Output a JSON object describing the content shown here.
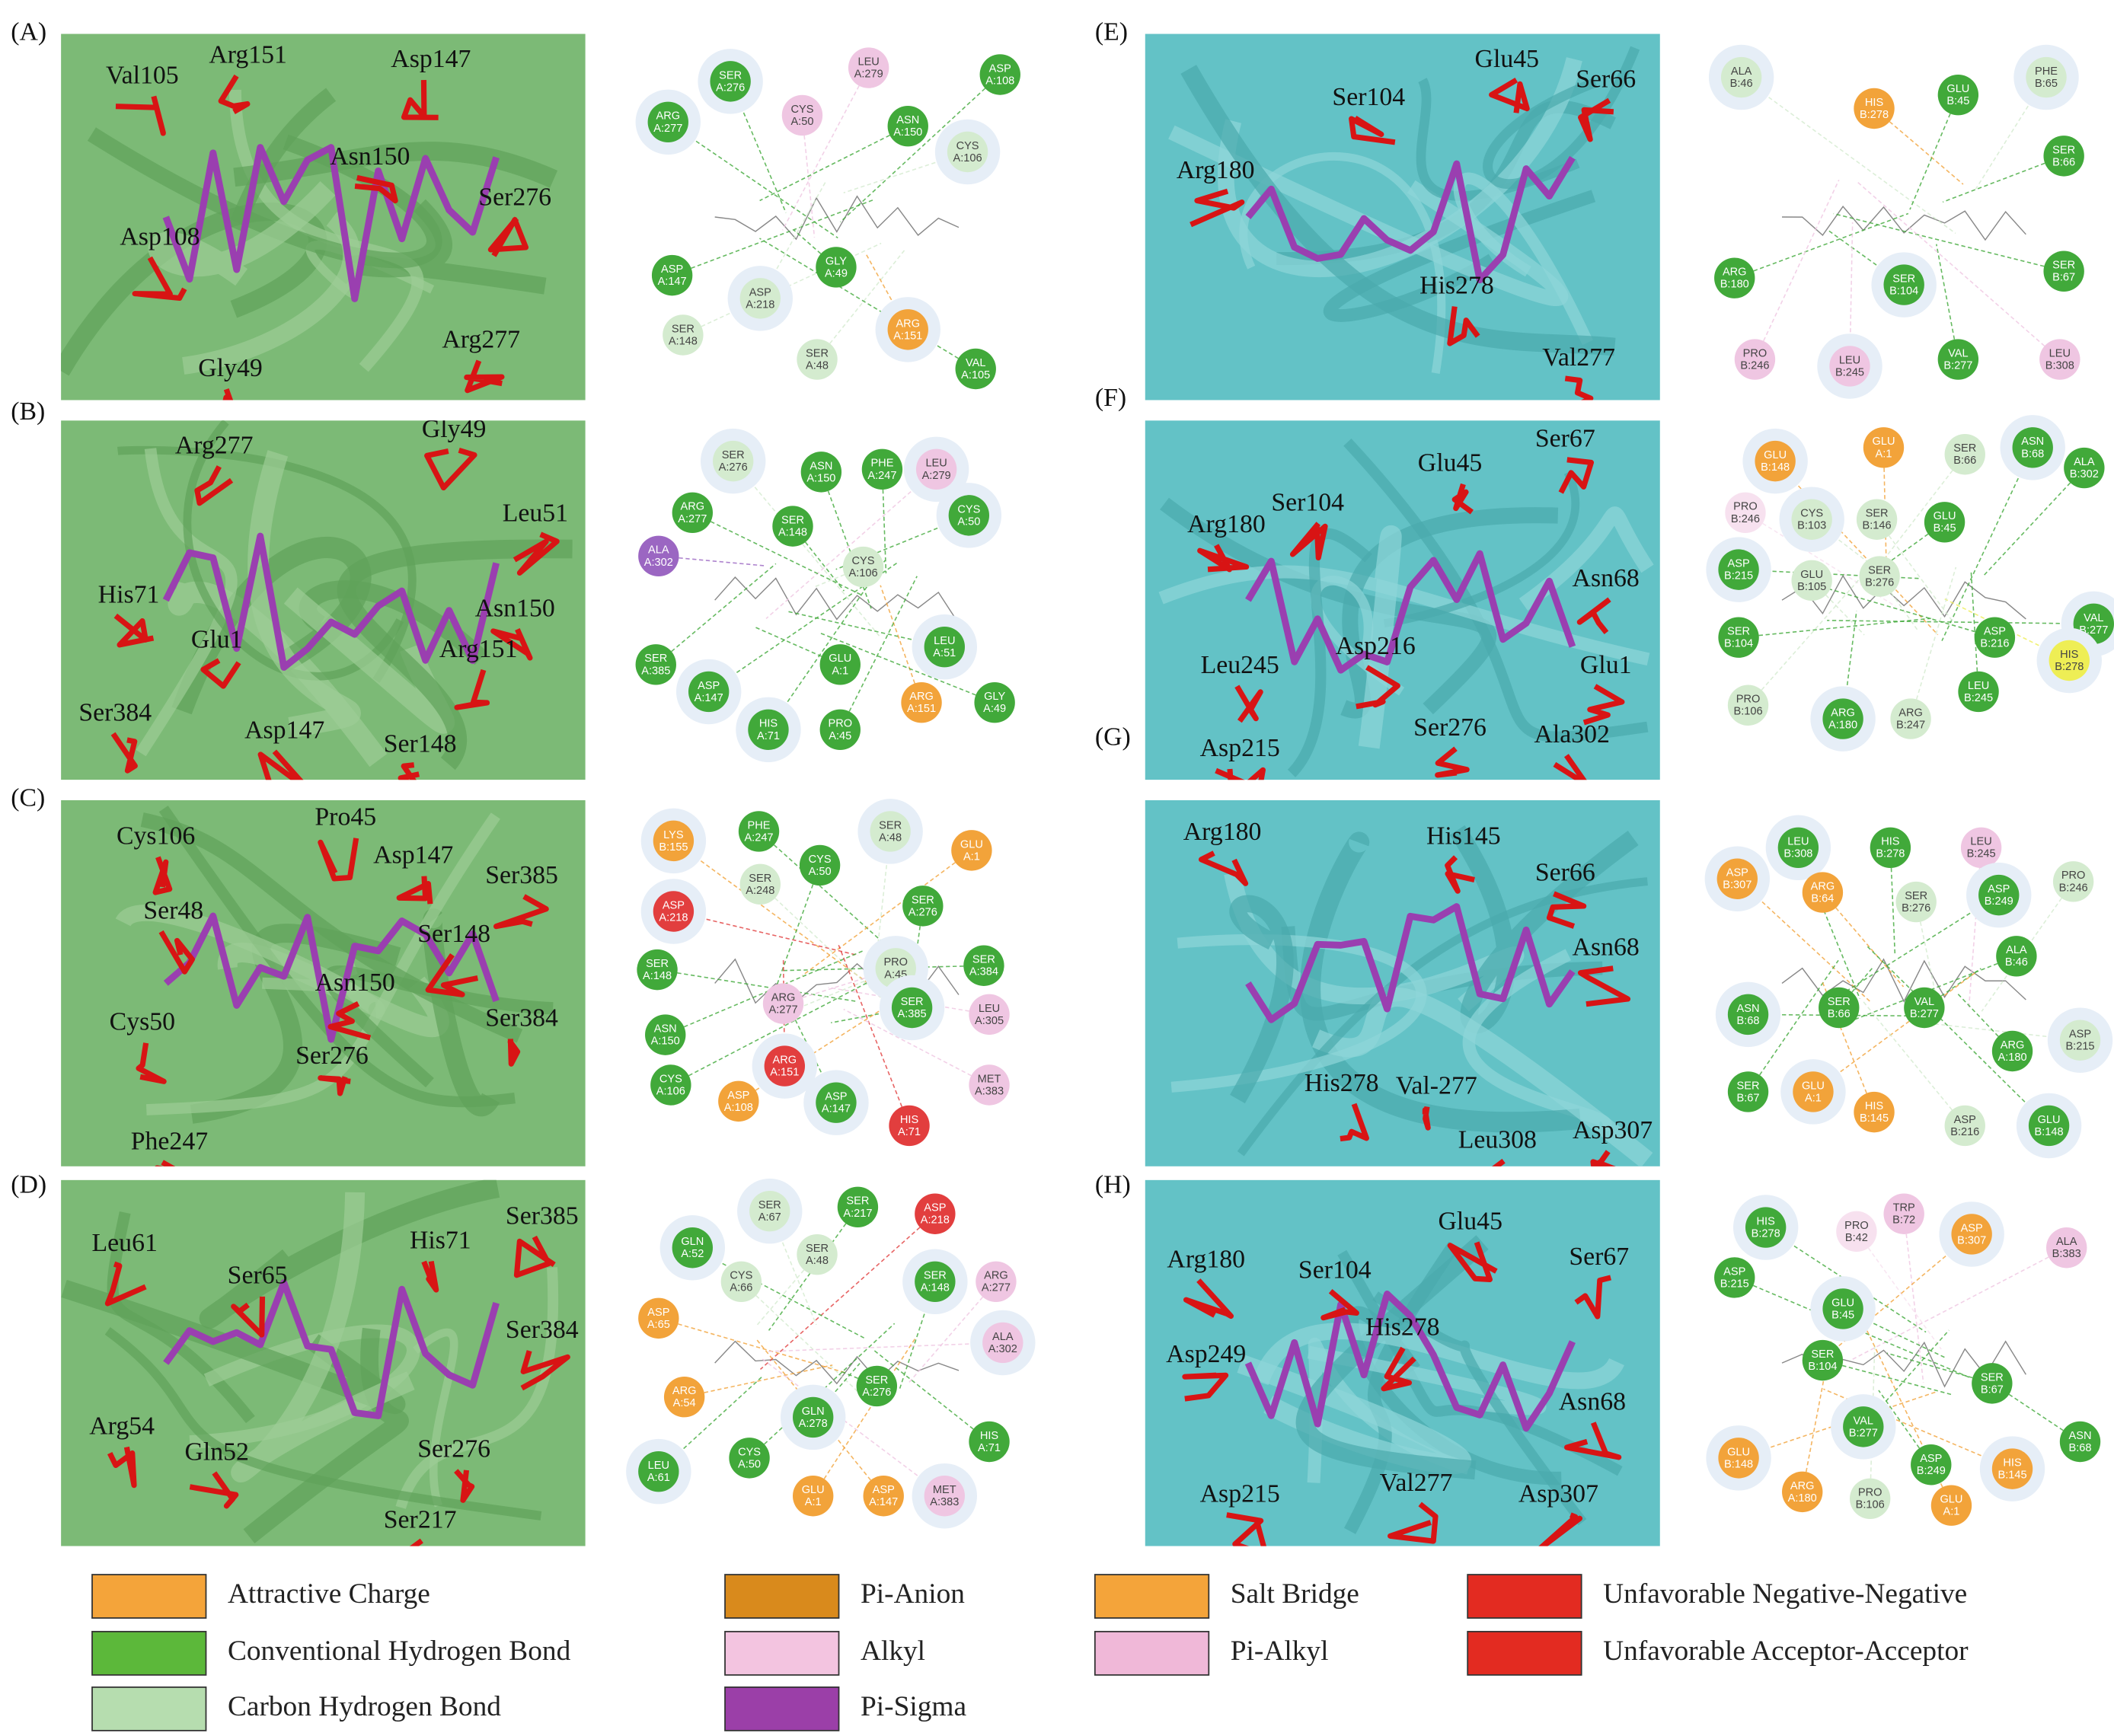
{
  "panels": [
    {
      "label": "(A)",
      "residues": [
        "Val105",
        "Arg151",
        "Asp147",
        "Asn150",
        "Ser276",
        "Asp108",
        "Arg277",
        "Gly49"
      ],
      "nodes": [
        {
          "res": "SER",
          "id": "A:276",
          "color": "#41a93a"
        },
        {
          "res": "LEU",
          "id": "A:279",
          "color": "#efc6e2"
        },
        {
          "res": "ASP",
          "id": "A:108",
          "color": "#41a93a"
        },
        {
          "res": "ARG",
          "id": "A:277",
          "color": "#41a93a"
        },
        {
          "res": "CYS",
          "id": "A:50",
          "color": "#efc6e2"
        },
        {
          "res": "ASN",
          "id": "A:150",
          "color": "#41a93a"
        },
        {
          "res": "CYS",
          "id": "A:106",
          "color": "#d4ebcf"
        },
        {
          "res": "ASP",
          "id": "A:147",
          "color": "#41a93a"
        },
        {
          "res": "GLY",
          "id": "A:49",
          "color": "#41a93a"
        },
        {
          "res": "ASP",
          "id": "A:218",
          "color": "#d4ebcf"
        },
        {
          "res": "SER",
          "id": "A:148",
          "color": "#d4ebcf"
        },
        {
          "res": "SER",
          "id": "A:48",
          "color": "#d4ebcf"
        },
        {
          "res": "ARG",
          "id": "A:151",
          "color": "#f2a33a"
        },
        {
          "res": "VAL",
          "id": "A:105",
          "color": "#41a93a"
        }
      ]
    },
    {
      "label": "(B)",
      "residues": [
        "Arg277",
        "Gly49",
        "Leu51",
        "His71",
        "Asn150",
        "Glu1",
        "Arg151",
        "Ser384",
        "Asp147",
        "Ser148"
      ],
      "nodes": [
        {
          "res": "SER",
          "id": "A:276",
          "color": "#d4ebcf"
        },
        {
          "res": "ASN",
          "id": "A:150",
          "color": "#41a93a"
        },
        {
          "res": "PHE",
          "id": "A:247",
          "color": "#41a93a"
        },
        {
          "res": "LEU",
          "id": "A:279",
          "color": "#efc6e2"
        },
        {
          "res": "ARG",
          "id": "A:277",
          "color": "#41a93a"
        },
        {
          "res": "SER",
          "id": "A:148",
          "color": "#41a93a"
        },
        {
          "res": "CYS",
          "id": "A:50",
          "color": "#41a93a"
        },
        {
          "res": "ALA",
          "id": "A:302",
          "color": "#9b66c2"
        },
        {
          "res": "CYS",
          "id": "A:106",
          "color": "#d4ebcf"
        },
        {
          "res": "LEU",
          "id": "A:51",
          "color": "#41a93a"
        },
        {
          "res": "SER",
          "id": "A:385",
          "color": "#41a93a"
        },
        {
          "res": "GLU",
          "id": "A:1",
          "color": "#41a93a"
        },
        {
          "res": "ASP",
          "id": "A:147",
          "color": "#41a93a"
        },
        {
          "res": "ARG",
          "id": "A:151",
          "color": "#f2a33a"
        },
        {
          "res": "GLY",
          "id": "A:49",
          "color": "#41a93a"
        },
        {
          "res": "HIS",
          "id": "A:71",
          "color": "#41a93a"
        },
        {
          "res": "PRO",
          "id": "A:45",
          "color": "#41a93a"
        }
      ]
    },
    {
      "label": "(C)",
      "residues": [
        "Cys106",
        "Pro45",
        "Asp147",
        "Ser385",
        "Ser48",
        "Ser148",
        "Asn150",
        "Ser384",
        "Cys50",
        "Ser276",
        "Phe247"
      ],
      "nodes": [
        {
          "res": "LYS",
          "id": "B:155",
          "color": "#f2a33a"
        },
        {
          "res": "PHE",
          "id": "A:247",
          "color": "#41a93a"
        },
        {
          "res": "CYS",
          "id": "A:50",
          "color": "#41a93a"
        },
        {
          "res": "SER",
          "id": "A:48",
          "color": "#d4ebcf"
        },
        {
          "res": "GLU",
          "id": "A:1",
          "color": "#f2a33a"
        },
        {
          "res": "SER",
          "id": "A:248",
          "color": "#d4ebcf"
        },
        {
          "res": "ASP",
          "id": "A:218",
          "color": "#e23e3e"
        },
        {
          "res": "SER",
          "id": "A:276",
          "color": "#41a93a"
        },
        {
          "res": "SER",
          "id": "A:148",
          "color": "#41a93a"
        },
        {
          "res": "PRO",
          "id": "A:45",
          "color": "#d4ebcf"
        },
        {
          "res": "SER",
          "id": "A:384",
          "color": "#41a93a"
        },
        {
          "res": "ARG",
          "id": "A:277",
          "color": "#efc6e2"
        },
        {
          "res": "SER",
          "id": "A:385",
          "color": "#41a93a"
        },
        {
          "res": "LEU",
          "id": "A:305",
          "color": "#efc6e2"
        },
        {
          "res": "ASN",
          "id": "A:150",
          "color": "#41a93a"
        },
        {
          "res": "ARG",
          "id": "A:151",
          "color": "#e23e3e"
        },
        {
          "res": "CYS",
          "id": "A:106",
          "color": "#41a93a"
        },
        {
          "res": "ASP",
          "id": "A:108",
          "color": "#f2a33a"
        },
        {
          "res": "ASP",
          "id": "A:147",
          "color": "#41a93a"
        },
        {
          "res": "HIS",
          "id": "A:71",
          "color": "#e23e3e"
        },
        {
          "res": "MET",
          "id": "A:383",
          "color": "#efc6e2"
        }
      ]
    },
    {
      "label": "(D)",
      "residues": [
        "Leu61",
        "His71",
        "Ser385",
        "Ser65",
        "Ser384",
        "Arg54",
        "Gln52",
        "Ser276",
        "Ser217"
      ],
      "nodes": [
        {
          "res": "SER",
          "id": "A:67",
          "color": "#d4ebcf"
        },
        {
          "res": "SER",
          "id": "A:217",
          "color": "#41a93a"
        },
        {
          "res": "ASP",
          "id": "A:218",
          "color": "#e23e3e"
        },
        {
          "res": "GLN",
          "id": "A:52",
          "color": "#41a93a"
        },
        {
          "res": "SER",
          "id": "A:48",
          "color": "#d4ebcf"
        },
        {
          "res": "CYS",
          "id": "A:66",
          "color": "#d4ebcf"
        },
        {
          "res": "SER",
          "id": "A:148",
          "color": "#41a93a"
        },
        {
          "res": "ARG",
          "id": "A:277",
          "color": "#efc6e2"
        },
        {
          "res": "ASP",
          "id": "A:65",
          "color": "#f2a33a"
        },
        {
          "res": "ALA",
          "id": "A:302",
          "color": "#efc6e2"
        },
        {
          "res": "ARG",
          "id": "A:54",
          "color": "#f2a33a"
        },
        {
          "res": "SER",
          "id": "A:276",
          "color": "#41a93a"
        },
        {
          "res": "GLN",
          "id": "A:278",
          "color": "#41a93a"
        },
        {
          "res": "HIS",
          "id": "A:71",
          "color": "#41a93a"
        },
        {
          "res": "CYS",
          "id": "A:50",
          "color": "#41a93a"
        },
        {
          "res": "LEU",
          "id": "A:61",
          "color": "#41a93a"
        },
        {
          "res": "GLU",
          "id": "A:1",
          "color": "#f2a33a"
        },
        {
          "res": "ASP",
          "id": "A:147",
          "color": "#f2a33a"
        },
        {
          "res": "MET",
          "id": "A:383",
          "color": "#efc6e2"
        }
      ]
    },
    {
      "label": "(E)",
      "residues": [
        "Glu45",
        "Ser104",
        "Ser66",
        "Arg180",
        "His278",
        "Val277"
      ],
      "nodes": [
        {
          "res": "ALA",
          "id": "B:46",
          "color": "#d4ebcf"
        },
        {
          "res": "HIS",
          "id": "B:278",
          "color": "#f2a33a"
        },
        {
          "res": "GLU",
          "id": "B:45",
          "color": "#41a93a"
        },
        {
          "res": "PHE",
          "id": "B:65",
          "color": "#d4ebcf"
        },
        {
          "res": "SER",
          "id": "B:66",
          "color": "#41a93a"
        },
        {
          "res": "ARG",
          "id": "B:180",
          "color": "#41a93a"
        },
        {
          "res": "SER",
          "id": "B:104",
          "color": "#41a93a"
        },
        {
          "res": "SER",
          "id": "B:67",
          "color": "#41a93a"
        },
        {
          "res": "PRO",
          "id": "B:246",
          "color": "#efc6e2"
        },
        {
          "res": "LEU",
          "id": "B:245",
          "color": "#efc6e2"
        },
        {
          "res": "VAL",
          "id": "B:277",
          "color": "#41a93a"
        },
        {
          "res": "LEU",
          "id": "B:308",
          "color": "#efc6e2"
        }
      ]
    },
    {
      "label": "(F)",
      "residues": [
        "Ser67",
        "Glu45",
        "Ser104",
        "Arg180",
        "Asn68",
        "Asp216",
        "Glu1",
        "Leu245",
        "Ser276",
        "Ala302",
        "Asp215"
      ],
      "nodes": [
        {
          "res": "GLU",
          "id": "B:148",
          "color": "#f2a33a"
        },
        {
          "res": "GLU",
          "id": "A:1",
          "color": "#f2a33a"
        },
        {
          "res": "SER",
          "id": "B:66",
          "color": "#d4ebcf"
        },
        {
          "res": "ASN",
          "id": "B:68",
          "color": "#41a93a"
        },
        {
          "res": "ALA",
          "id": "B:302",
          "color": "#41a93a"
        },
        {
          "res": "PRO",
          "id": "B:246",
          "color": "#f7e1ef"
        },
        {
          "res": "CYS",
          "id": "B:103",
          "color": "#d4ebcf"
        },
        {
          "res": "SER",
          "id": "B:146",
          "color": "#d4ebcf"
        },
        {
          "res": "GLU",
          "id": "B:45",
          "color": "#41a93a"
        },
        {
          "res": "ASP",
          "id": "B:215",
          "color": "#41a93a"
        },
        {
          "res": "GLU",
          "id": "B:105",
          "color": "#d4ebcf"
        },
        {
          "res": "SER",
          "id": "B:276",
          "color": "#d4ebcf"
        },
        {
          "res": "VAL",
          "id": "B:277",
          "color": "#41a93a"
        },
        {
          "res": "SER",
          "id": "B:104",
          "color": "#41a93a"
        },
        {
          "res": "ASP",
          "id": "B:216",
          "color": "#41a93a"
        },
        {
          "res": "HIS",
          "id": "B:278",
          "color": "#eeee55"
        },
        {
          "res": "LEU",
          "id": "B:245",
          "color": "#41a93a"
        },
        {
          "res": "PRO",
          "id": "B:106",
          "color": "#d4ebcf"
        },
        {
          "res": "ARG",
          "id": "A:180",
          "color": "#41a93a"
        },
        {
          "res": "ARG",
          "id": "B:247",
          "color": "#d4ebcf"
        }
      ]
    },
    {
      "label": "(G)",
      "residues": [
        "Arg180",
        "His145",
        "Ser66",
        "Asn68",
        "His278",
        "Val-277",
        "Leu308",
        "Asp307"
      ],
      "nodes": [
        {
          "res": "LEU",
          "id": "B:308",
          "color": "#41a93a"
        },
        {
          "res": "HIS",
          "id": "B:278",
          "color": "#41a93a"
        },
        {
          "res": "LEU",
          "id": "B:245",
          "color": "#efc6e2"
        },
        {
          "res": "ASP",
          "id": "B:307",
          "color": "#f2a33a"
        },
        {
          "res": "ARG",
          "id": "B:64",
          "color": "#f2a33a"
        },
        {
          "res": "SER",
          "id": "B:276",
          "color": "#d4ebcf"
        },
        {
          "res": "ASP",
          "id": "B:249",
          "color": "#41a93a"
        },
        {
          "res": "PRO",
          "id": "B:246",
          "color": "#d4ebcf"
        },
        {
          "res": "ALA",
          "id": "B:46",
          "color": "#41a93a"
        },
        {
          "res": "ASN",
          "id": "B:68",
          "color": "#41a93a"
        },
        {
          "res": "SER",
          "id": "B:66",
          "color": "#41a93a"
        },
        {
          "res": "VAL",
          "id": "B:277",
          "color": "#41a93a"
        },
        {
          "res": "ASP",
          "id": "B:215",
          "color": "#d4ebcf"
        },
        {
          "res": "ARG",
          "id": "A:180",
          "color": "#41a93a"
        },
        {
          "res": "SER",
          "id": "B:67",
          "color": "#41a93a"
        },
        {
          "res": "GLU",
          "id": "A:1",
          "color": "#f2a33a"
        },
        {
          "res": "HIS",
          "id": "B:145",
          "color": "#f2a33a"
        },
        {
          "res": "ASP",
          "id": "B:216",
          "color": "#d4ebcf"
        },
        {
          "res": "GLU",
          "id": "B:148",
          "color": "#41a93a"
        }
      ]
    },
    {
      "label": "(H)",
      "residues": [
        "Glu45",
        "Arg180",
        "Ser104",
        "Ser67",
        "Asp249",
        "His278",
        "Asn68",
        "Asp215",
        "Val277",
        "Asp307"
      ],
      "nodes": [
        {
          "res": "HIS",
          "id": "B:278",
          "color": "#41a93a"
        },
        {
          "res": "PRO",
          "id": "B:42",
          "color": "#f7e1ef"
        },
        {
          "res": "TRP",
          "id": "B:72",
          "color": "#efc6e2"
        },
        {
          "res": "ASP",
          "id": "B:307",
          "color": "#f2a33a"
        },
        {
          "res": "ALA",
          "id": "B:383",
          "color": "#efc6e2"
        },
        {
          "res": "ASP",
          "id": "B:215",
          "color": "#41a93a"
        },
        {
          "res": "GLU",
          "id": "B:45",
          "color": "#41a93a"
        },
        {
          "res": "SER",
          "id": "B:104",
          "color": "#41a93a"
        },
        {
          "res": "SER",
          "id": "B:67",
          "color": "#41a93a"
        },
        {
          "res": "VAL",
          "id": "B:277",
          "color": "#41a93a"
        },
        {
          "res": "ASN",
          "id": "B:68",
          "color": "#41a93a"
        },
        {
          "res": "ASP",
          "id": "B:249",
          "color": "#41a93a"
        },
        {
          "res": "GLU",
          "id": "B:148",
          "color": "#f2a33a"
        },
        {
          "res": "ARG",
          "id": "A:180",
          "color": "#f2a33a"
        },
        {
          "res": "PRO",
          "id": "B:106",
          "color": "#d4ebcf"
        },
        {
          "res": "HIS",
          "id": "B:145",
          "color": "#f2a33a"
        },
        {
          "res": "GLU",
          "id": "A:1",
          "color": "#f2a33a"
        }
      ]
    }
  ],
  "legend": [
    {
      "label": "Attractive Charge",
      "color": "#f4a43a"
    },
    {
      "label": "Conventional Hydrogen Bond",
      "color": "#5cb83a"
    },
    {
      "label": "Carbon Hydrogen Bond",
      "color": "#b6ddaf"
    },
    {
      "label": "Pi-Anion",
      "color": "#d98a1c"
    },
    {
      "label": "Alkyl",
      "color": "#f3c4e0"
    },
    {
      "label": "Pi-Sigma",
      "color": "#9b3fa8"
    },
    {
      "label": "Salt Bridge",
      "color": "#f4a43a"
    },
    {
      "label": "Pi-Alkyl",
      "color": "#f0b8d8"
    },
    {
      "label": "Unfavorable Negative-Negative",
      "color": "#e32b21"
    },
    {
      "label": "Unfavorable Acceptor-Acceptor",
      "color": "#e32b21"
    }
  ]
}
